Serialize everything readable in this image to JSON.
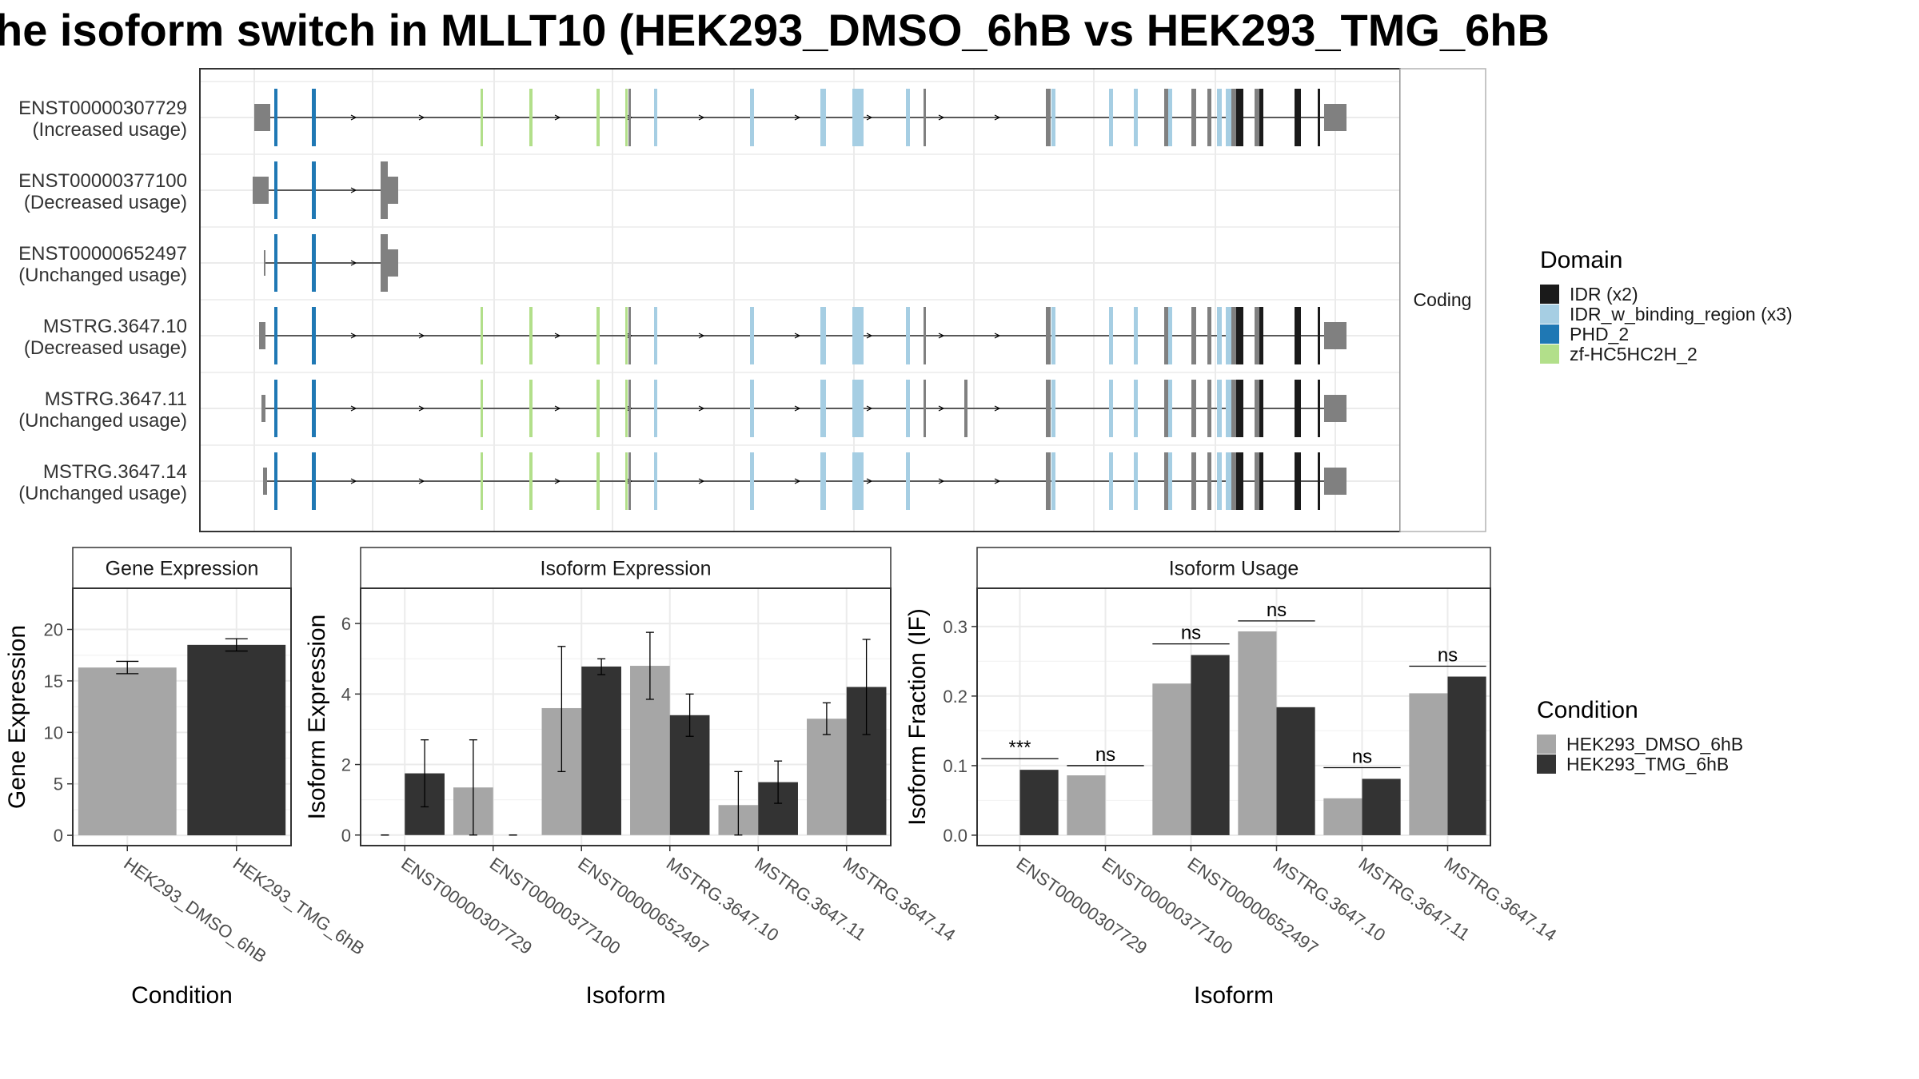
{
  "title": "he isoform switch in MLLT10 (HEK293_DMSO_6hB vs HEK293_TMG_6hB",
  "transcripts": {
    "facet_label": "Coding",
    "rows": [
      {
        "id": "ENST00000307729",
        "usage": "(Increased usage)"
      },
      {
        "id": "ENST00000377100",
        "usage": "(Decreased usage)"
      },
      {
        "id": "ENST00000652497",
        "usage": "(Unchanged usage)"
      },
      {
        "id": "MSTRG.3647.10",
        "usage": "(Decreased usage)"
      },
      {
        "id": "MSTRG.3647.11",
        "usage": "(Unchanged usage)"
      },
      {
        "id": "MSTRG.3647.14",
        "usage": "(Unchanged usage)"
      }
    ]
  },
  "domain_legend": {
    "title": "Domain",
    "items": [
      {
        "label": "IDR (x2)",
        "color": "#1a1a1a"
      },
      {
        "label": "IDR_w_binding_region (x3)",
        "color": "#a6cee3"
      },
      {
        "label": "PHD_2",
        "color": "#1f78b4"
      },
      {
        "label": "zf-HC5HC2H_2",
        "color": "#b2df8a"
      }
    ]
  },
  "condition_legend": {
    "title": "Condition",
    "items": [
      {
        "label": "HEK293_DMSO_6hB",
        "color": "#a6a6a6"
      },
      {
        "label": "HEK293_TMG_6hB",
        "color": "#333333"
      }
    ]
  },
  "chart_data": [
    {
      "type": "bar",
      "title": "Gene Expression",
      "xlabel": "Condition",
      "ylabel": "Gene Expression",
      "categories": [
        "HEK293_DMSO_6hB",
        "HEK293_TMG_6hB"
      ],
      "yticks": [
        "0",
        "5",
        "10",
        "15",
        "20"
      ],
      "ylim": [
        -1,
        24
      ],
      "values": [
        16.3,
        18.5
      ],
      "errors": [
        [
          15.7,
          16.9
        ],
        [
          17.9,
          19.1
        ]
      ],
      "colors": [
        "#a6a6a6",
        "#333333"
      ]
    },
    {
      "type": "bar",
      "title": "Isoform Expression",
      "xlabel": "Isoform",
      "ylabel": "Isoform Expression",
      "categories": [
        "ENST00000307729",
        "ENST00000377100",
        "ENST00000652497",
        "MSTRG.3647.10",
        "MSTRG.3647.11",
        "MSTRG.3647.14"
      ],
      "yticks": [
        "0",
        "2",
        "4",
        "6"
      ],
      "ylim": [
        -0.3,
        7.0
      ],
      "series": [
        {
          "name": "HEK293_DMSO_6hB",
          "values": [
            0,
            1.35,
            3.6,
            4.8,
            0.85,
            3.3
          ],
          "errors": [
            [
              0,
              0
            ],
            [
              0,
              2.7
            ],
            [
              1.8,
              5.35
            ],
            [
              3.85,
              5.75
            ],
            [
              0,
              1.8
            ],
            [
              2.85,
              3.75
            ]
          ]
        },
        {
          "name": "HEK293_TMG_6hB",
          "values": [
            1.75,
            0,
            4.78,
            3.4,
            1.5,
            4.2
          ],
          "errors": [
            [
              0.8,
              2.7
            ],
            [
              0,
              0
            ],
            [
              4.55,
              5.0
            ],
            [
              2.8,
              4.0
            ],
            [
              0.9,
              2.1
            ],
            [
              2.85,
              5.55
            ]
          ]
        }
      ]
    },
    {
      "type": "bar",
      "title": "Isoform Usage",
      "xlabel": "Isoform",
      "ylabel": "Isoform Fraction (IF)",
      "categories": [
        "ENST00000307729",
        "ENST00000377100",
        "ENST00000652497",
        "MSTRG.3647.10",
        "MSTRG.3647.11",
        "MSTRG.3647.14"
      ],
      "yticks": [
        "0.0",
        "0.1",
        "0.2",
        "0.3"
      ],
      "ylim": [
        -0.015,
        0.355
      ],
      "series": [
        {
          "name": "HEK293_DMSO_6hB",
          "values": [
            0,
            0.086,
            0.218,
            0.293,
            0.053,
            0.204
          ]
        },
        {
          "name": "HEK293_TMG_6hB",
          "values": [
            0.094,
            0,
            0.259,
            0.184,
            0.081,
            0.228
          ]
        }
      ],
      "significance": [
        "***",
        "ns",
        "ns",
        "ns",
        "ns",
        "ns"
      ],
      "significance_y": [
        0.11,
        0.1,
        0.275,
        0.308,
        0.097,
        0.243
      ]
    }
  ]
}
